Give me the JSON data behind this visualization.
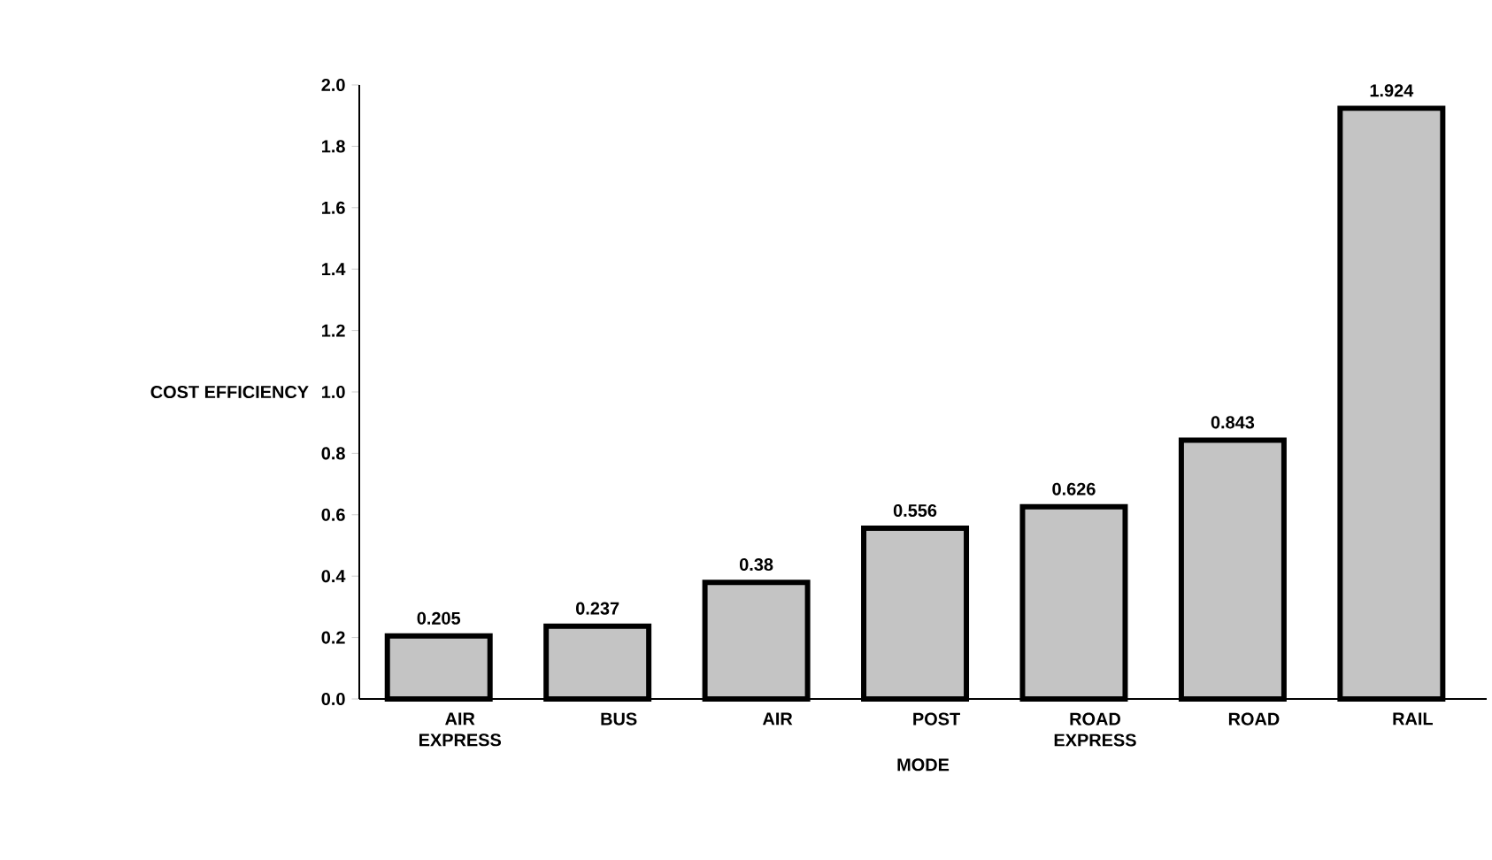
{
  "chart_data": {
    "type": "bar",
    "xlabel": "MODE",
    "ylabel": "COST EFFICIENCY",
    "categories": [
      "AIR EXPRESS",
      "BUS",
      "AIR",
      "POST",
      "ROAD EXPRESS",
      "ROAD",
      "RAIL"
    ],
    "values": [
      0.205,
      0.237,
      0.38,
      0.556,
      0.626,
      0.843,
      1.924
    ],
    "color": "#c4c4c4",
    "data_labels": true,
    "ylim": [
      0,
      2.0
    ],
    "yticks": [
      {
        "value": 0,
        "label": "0.0"
      },
      0.2,
      0.4,
      0.6,
      0.8,
      {
        "value": 1.0,
        "label": "1.0"
      },
      1.2,
      1.4,
      1.6,
      1.8,
      {
        "value": 2.0,
        "label": "2.0"
      }
    ]
  }
}
